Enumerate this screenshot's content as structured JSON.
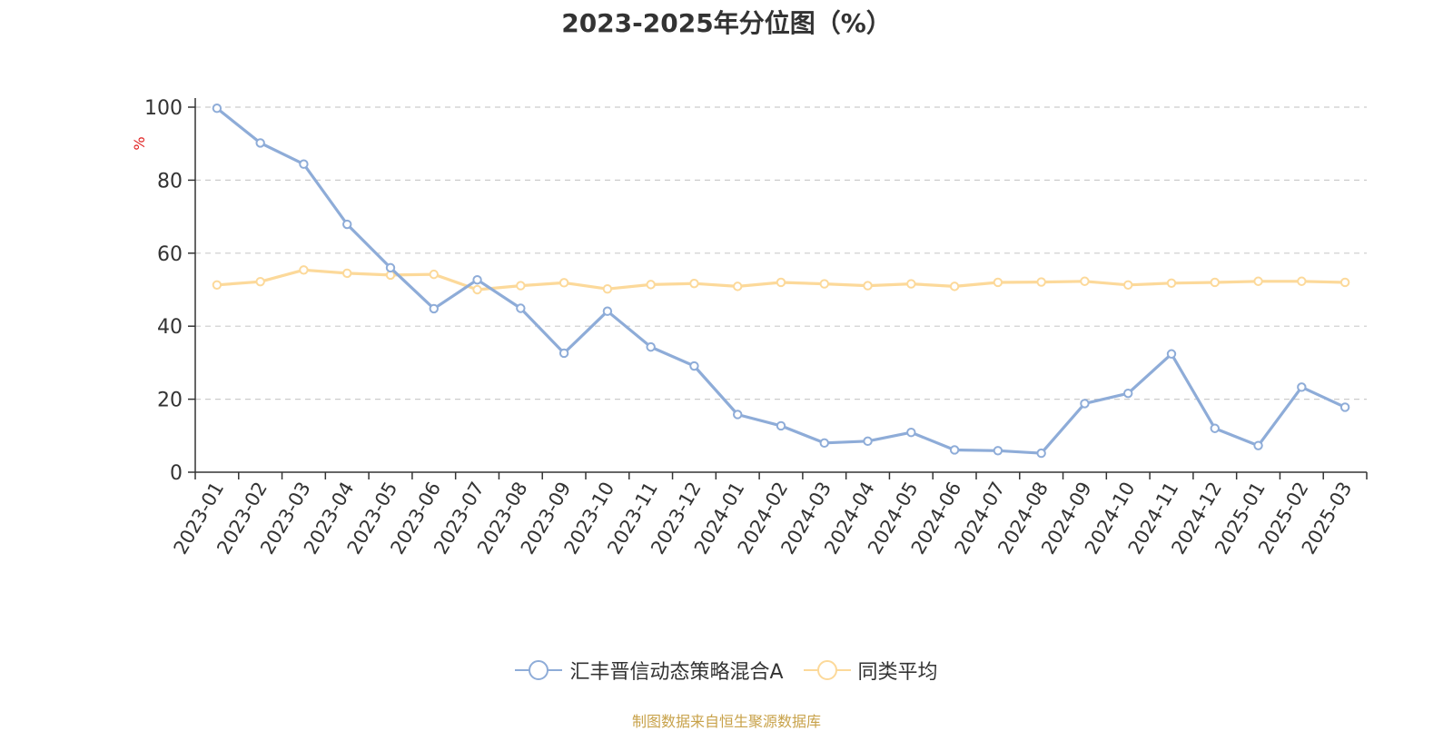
{
  "chart_data": {
    "type": "line",
    "title": "2023-2025年分位图（%）",
    "ylabel": "%",
    "ylim": [
      0,
      100
    ],
    "yticks": [
      0,
      20,
      40,
      60,
      80,
      100
    ],
    "grid": true,
    "legend_position": "bottom-center",
    "categories": [
      "2023-01",
      "2023-02",
      "2023-03",
      "2023-04",
      "2023-05",
      "2023-06",
      "2023-07",
      "2023-08",
      "2023-09",
      "2023-10",
      "2023-11",
      "2023-12",
      "2024-01",
      "2024-02",
      "2024-03",
      "2024-04",
      "2024-05",
      "2024-06",
      "2024-07",
      "2024-08",
      "2024-09",
      "2024-10",
      "2024-11",
      "2024-12",
      "2025-01",
      "2025-02",
      "2025-03"
    ],
    "series": [
      {
        "name": "汇丰晋信动态策略混合A",
        "color": "#8eacd8",
        "values": [
          99.7,
          90.2,
          84.4,
          67.9,
          56.0,
          44.8,
          52.7,
          44.9,
          32.6,
          44.1,
          34.3,
          29.1,
          15.8,
          12.7,
          8.0,
          8.5,
          10.9,
          6.1,
          5.9,
          5.2,
          18.8,
          21.6,
          32.4,
          12.0,
          7.3,
          23.3,
          17.8
        ]
      },
      {
        "name": "同类平均",
        "color": "#fcd99a",
        "values": [
          51.3,
          52.2,
          55.4,
          54.5,
          54.0,
          54.2,
          50.0,
          51.1,
          51.9,
          50.2,
          51.4,
          51.7,
          50.9,
          52.0,
          51.6,
          51.1,
          51.6,
          50.9,
          52.0,
          52.1,
          52.3,
          51.3,
          51.8,
          52.0,
          52.3,
          52.3,
          52.0
        ]
      }
    ]
  },
  "footer": {
    "source": "制图数据来自恒生聚源数据库"
  }
}
